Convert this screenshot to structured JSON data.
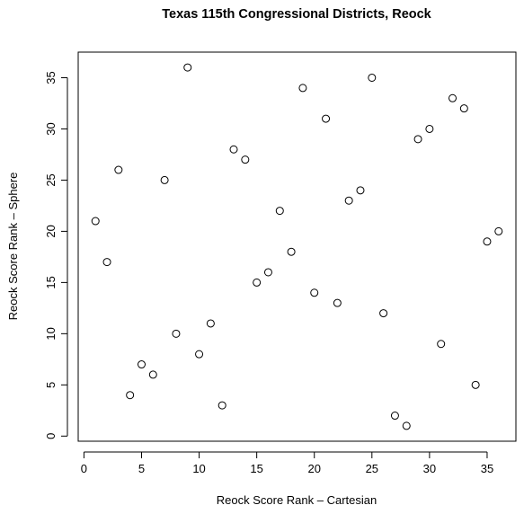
{
  "chart_data": {
    "type": "scatter",
    "title": "Texas 115th Congressional Districts, Reock",
    "xlabel": "Reock Score Rank – Cartesian",
    "ylabel": "Reock Score Rank – Sphere",
    "xlim": [
      -0.5,
      37.5
    ],
    "ylim": [
      -0.5,
      37.5
    ],
    "xticks": [
      0,
      5,
      10,
      15,
      20,
      25,
      30,
      35
    ],
    "yticks": [
      0,
      5,
      10,
      15,
      20,
      25,
      30,
      35
    ],
    "grid": false,
    "legend": "none",
    "marker": "open-circle",
    "points": [
      {
        "x": 1,
        "y": 21
      },
      {
        "x": 2,
        "y": 17
      },
      {
        "x": 3,
        "y": 26
      },
      {
        "x": 4,
        "y": 4
      },
      {
        "x": 5,
        "y": 7
      },
      {
        "x": 6,
        "y": 6
      },
      {
        "x": 7,
        "y": 25
      },
      {
        "x": 8,
        "y": 10
      },
      {
        "x": 9,
        "y": 36
      },
      {
        "x": 10,
        "y": 8
      },
      {
        "x": 11,
        "y": 11
      },
      {
        "x": 12,
        "y": 3
      },
      {
        "x": 13,
        "y": 28
      },
      {
        "x": 14,
        "y": 27
      },
      {
        "x": 15,
        "y": 15
      },
      {
        "x": 16,
        "y": 16
      },
      {
        "x": 17,
        "y": 22
      },
      {
        "x": 18,
        "y": 18
      },
      {
        "x": 19,
        "y": 34
      },
      {
        "x": 20,
        "y": 14
      },
      {
        "x": 21,
        "y": 31
      },
      {
        "x": 22,
        "y": 13
      },
      {
        "x": 23,
        "y": 23
      },
      {
        "x": 24,
        "y": 24
      },
      {
        "x": 25,
        "y": 35
      },
      {
        "x": 26,
        "y": 12
      },
      {
        "x": 27,
        "y": 2
      },
      {
        "x": 28,
        "y": 1
      },
      {
        "x": 29,
        "y": 29
      },
      {
        "x": 30,
        "y": 30
      },
      {
        "x": 31,
        "y": 9
      },
      {
        "x": 32,
        "y": 33
      },
      {
        "x": 33,
        "y": 32
      },
      {
        "x": 34,
        "y": 5
      },
      {
        "x": 35,
        "y": 19
      },
      {
        "x": 36,
        "y": 20
      }
    ]
  }
}
